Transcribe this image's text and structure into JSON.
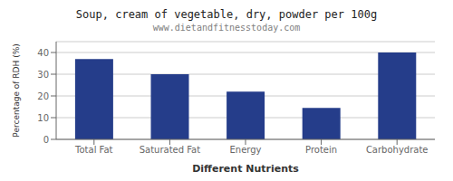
{
  "chart_data": {
    "type": "bar",
    "title": "Soup, cream of vegetable, dry, powder per 100g",
    "subtitle": "www.dietandfitnesstoday.com",
    "xlabel": "Different Nutrients",
    "ylabel": "Percentage of RDH (%)",
    "categories": [
      "Total Fat",
      "Saturated Fat",
      "Energy",
      "Protein",
      "Carbohydrate"
    ],
    "values": [
      37,
      30,
      22,
      14.5,
      40
    ],
    "color": "#253d8a",
    "ylim": [
      0,
      45
    ],
    "yticks": [
      0,
      10,
      20,
      30,
      40
    ],
    "grid": true
  }
}
